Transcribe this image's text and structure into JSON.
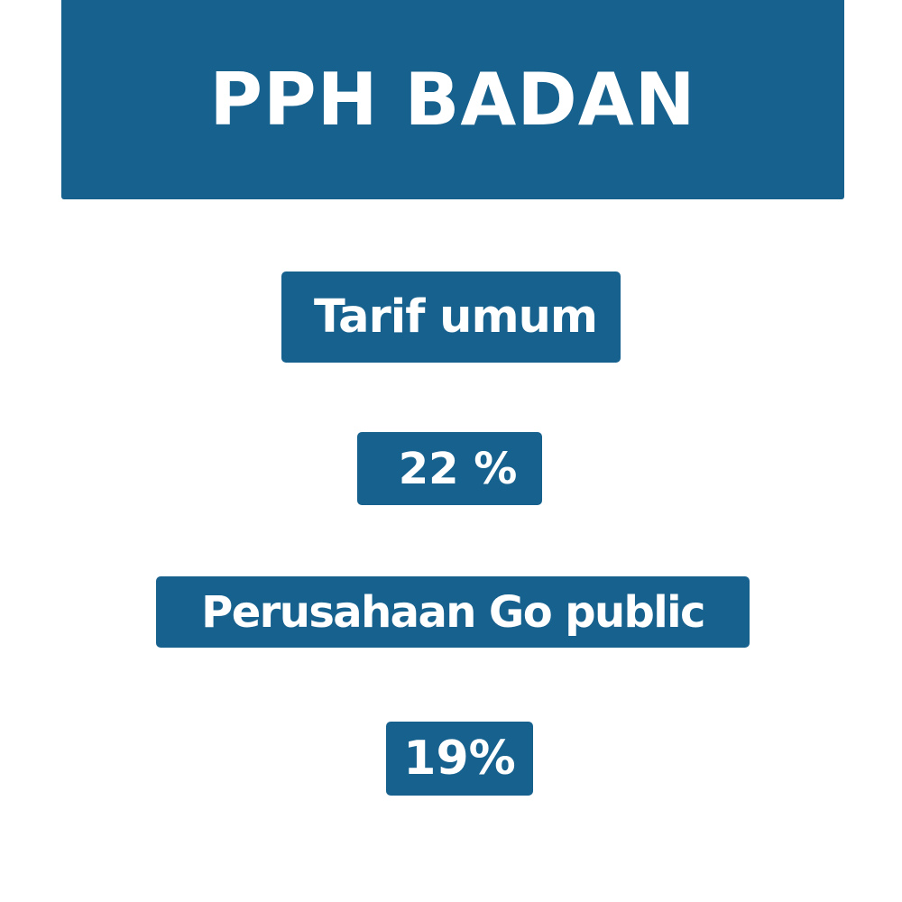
{
  "title": "PPH BADAN",
  "items": [
    {
      "label": "Tarif umum",
      "value": "22 %"
    },
    {
      "label": "Perusahaan Go public",
      "value": "19%"
    }
  ],
  "colors": {
    "box_background": "#17618e",
    "text": "#ffffff",
    "page_background": "#ffffff"
  }
}
